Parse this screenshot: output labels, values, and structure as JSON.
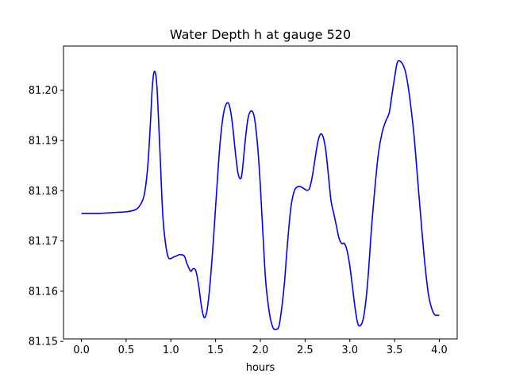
{
  "chart_data": {
    "type": "line",
    "title": "Water Depth h at gauge 520",
    "xlabel": "hours",
    "ylabel": "",
    "xlim": [
      -0.2,
      4.2
    ],
    "ylim": [
      81.1505,
      81.2088
    ],
    "xticks": [
      0.0,
      0.5,
      1.0,
      1.5,
      2.0,
      2.5,
      3.0,
      3.5,
      4.0
    ],
    "xtick_labels": [
      "0.0",
      "0.5",
      "1.0",
      "1.5",
      "2.0",
      "2.5",
      "3.0",
      "3.5",
      "4.0"
    ],
    "yticks": [
      81.15,
      81.16,
      81.17,
      81.18,
      81.19,
      81.2
    ],
    "ytick_labels": [
      "81.15",
      "81.16",
      "81.17",
      "81.18",
      "81.19",
      "81.20"
    ],
    "grid": false,
    "series": [
      {
        "color": "#0000ff",
        "x": [
          0.0,
          0.2,
          0.4,
          0.5,
          0.6,
          0.65,
          0.7,
          0.74,
          0.77,
          0.79,
          0.81,
          0.83,
          0.845,
          0.86,
          0.88,
          0.91,
          0.94,
          0.97,
          1.0,
          1.03,
          1.06,
          1.1,
          1.15,
          1.18,
          1.22,
          1.25,
          1.28,
          1.31,
          1.34,
          1.37,
          1.4,
          1.43,
          1.47,
          1.51,
          1.55,
          1.59,
          1.63,
          1.66,
          1.69,
          1.72,
          1.75,
          1.78,
          1.8,
          1.83,
          1.86,
          1.89,
          1.92,
          1.94,
          1.97,
          2.0,
          2.03,
          2.06,
          2.1,
          2.14,
          2.18,
          2.21,
          2.24,
          2.27,
          2.3,
          2.34,
          2.38,
          2.42,
          2.45,
          2.48,
          2.52,
          2.55,
          2.58,
          2.61,
          2.64,
          2.67,
          2.7,
          2.73,
          2.76,
          2.79,
          2.82,
          2.85,
          2.88,
          2.91,
          2.94,
          2.97,
          3.0,
          3.03,
          3.06,
          3.09,
          3.12,
          3.15,
          3.18,
          3.21,
          3.24,
          3.28,
          3.32,
          3.36,
          3.4,
          3.44,
          3.47,
          3.5,
          3.53,
          3.56,
          3.59,
          3.62,
          3.65,
          3.68,
          3.72,
          3.76,
          3.8,
          3.84,
          3.88,
          3.92,
          3.95,
          3.98,
          4.0
        ],
        "y": [
          81.1755,
          81.1755,
          81.1757,
          81.1758,
          81.1762,
          81.177,
          81.179,
          81.1845,
          81.193,
          81.2,
          81.2035,
          81.2032,
          81.2005,
          81.195,
          81.187,
          81.175,
          81.1695,
          81.1668,
          81.1665,
          81.1668,
          81.167,
          81.1673,
          81.167,
          81.1655,
          81.164,
          81.1645,
          81.164,
          81.1612,
          81.1572,
          81.1548,
          81.1558,
          81.16,
          81.1688,
          81.1795,
          81.1895,
          81.1955,
          81.1975,
          81.1965,
          81.193,
          81.1878,
          81.1835,
          81.1824,
          81.1842,
          81.1898,
          81.1942,
          81.1958,
          81.1955,
          81.1938,
          81.1888,
          81.181,
          81.171,
          81.162,
          81.1558,
          81.1528,
          81.1524,
          81.1532,
          81.1568,
          81.1618,
          81.1688,
          81.1765,
          81.18,
          81.1808,
          81.1808,
          81.1805,
          81.1801,
          81.1805,
          81.1828,
          81.1862,
          81.1895,
          81.1912,
          81.1908,
          81.1882,
          81.1832,
          81.178,
          81.1755,
          81.173,
          81.1705,
          81.1695,
          81.1695,
          81.168,
          81.165,
          81.1608,
          81.1565,
          81.1535,
          81.1532,
          81.1545,
          81.1582,
          81.1642,
          81.172,
          81.1805,
          81.1875,
          81.1915,
          81.1938,
          81.1955,
          81.199,
          81.2025,
          81.2055,
          81.2058,
          81.2052,
          81.2038,
          81.201,
          81.197,
          81.1905,
          81.1818,
          81.1732,
          81.1652,
          81.1592,
          81.1563,
          81.1553,
          81.1552,
          81.1552
        ]
      }
    ]
  }
}
